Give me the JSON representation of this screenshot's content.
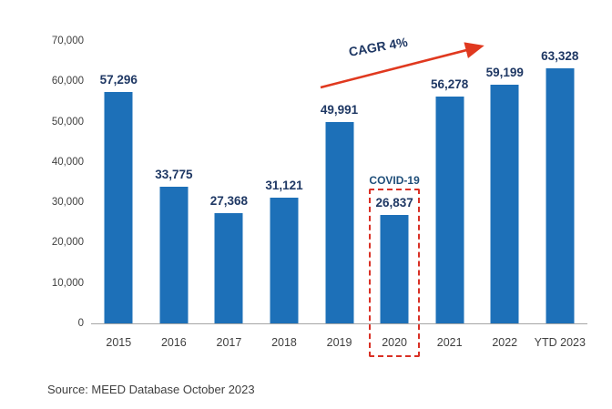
{
  "chart_data": {
    "type": "bar",
    "categories": [
      "2015",
      "2016",
      "2017",
      "2018",
      "2019",
      "2020",
      "2021",
      "2022",
      "YTD 2023"
    ],
    "values": [
      57296,
      33775,
      27368,
      31121,
      49991,
      26837,
      56278,
      59199,
      63328
    ],
    "value_labels": [
      "57,296",
      "33,775",
      "27,368",
      "31,121",
      "49,991",
      "26,837",
      "56,278",
      "59,199",
      "63,328"
    ],
    "title": "",
    "xlabel": "",
    "ylabel": "",
    "ylim": [
      0,
      70000
    ],
    "ytick_interval": 10000,
    "yticks": [
      "70,000",
      "60,000",
      "50,000",
      "40,000",
      "30,000",
      "20,000",
      "10,000",
      "0"
    ],
    "grid": false,
    "legend": "none",
    "annotations": {
      "cagr": {
        "label": "CAGR 4%"
      },
      "covid": {
        "label": "COVID-19",
        "target_category": "2020"
      }
    },
    "colors": {
      "bar": "#1d70b8",
      "value_label": "#1f3864",
      "annotation_red": "#e0391f",
      "covid_box_red": "#d93025",
      "covid_text": "#1f4e79",
      "axis_line": "#a6a6a6",
      "axis_text": "#404040"
    }
  },
  "footer": {
    "source": "Source: MEED Database October 2023"
  }
}
